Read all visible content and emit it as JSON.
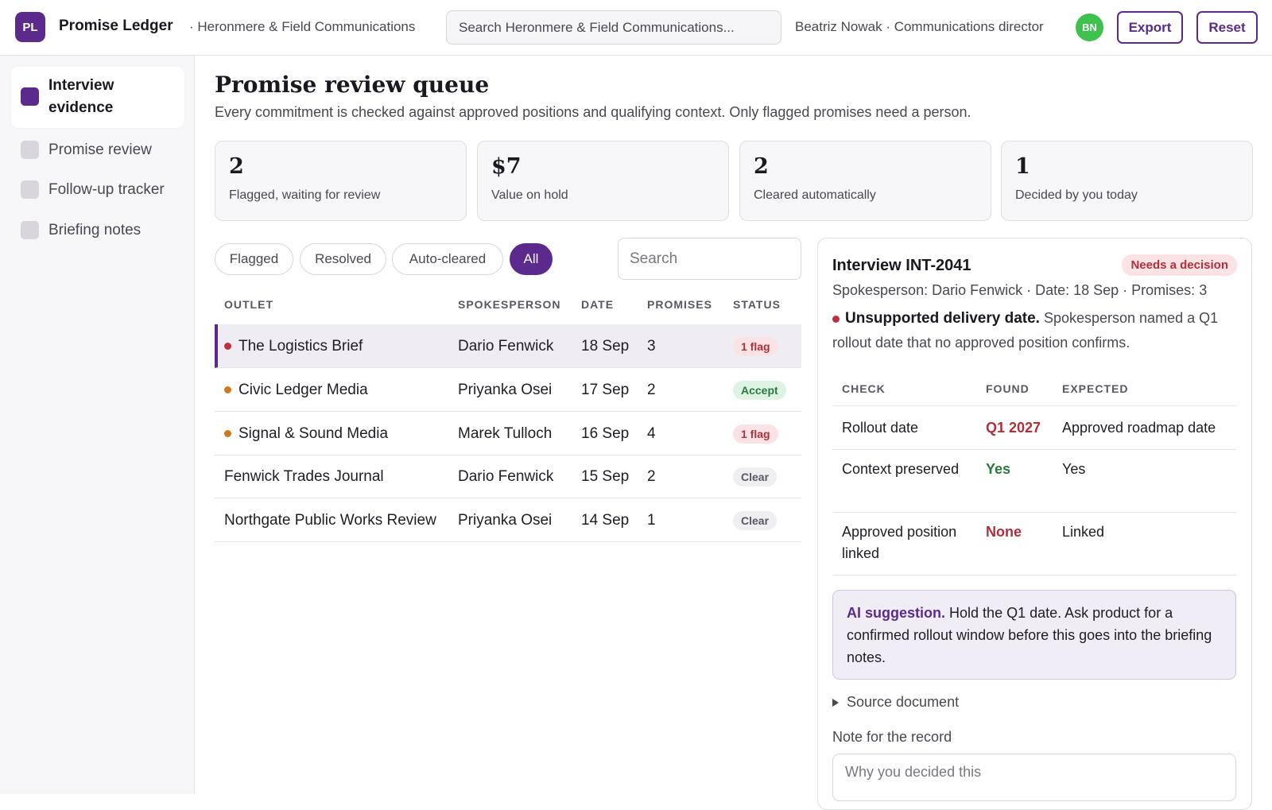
{
  "header": {
    "logo_text": "PL",
    "app_title": "Promise Ledger",
    "org_name": "· Heronmere & Field Communications",
    "search_placeholder": "Search Heronmere & Field Communications...",
    "user_label": "Beatriz Nowak · Communications director",
    "user_initials": "BN",
    "export_label": "Export",
    "reset_label": "Reset"
  },
  "sidebar": {
    "items": [
      {
        "label": "Interview evidence",
        "active": true
      },
      {
        "label": "Promise review",
        "active": false
      },
      {
        "label": "Follow-up tracker",
        "active": false
      },
      {
        "label": "Briefing notes",
        "active": false
      }
    ]
  },
  "main": {
    "title": "Promise review queue",
    "subtitle": "Every commitment is checked against approved positions and qualifying context. Only flagged promises need a person.",
    "stats": [
      {
        "value": "2",
        "caption": "Flagged, waiting for review"
      },
      {
        "value": "$7",
        "caption": "Value on hold"
      },
      {
        "value": "2",
        "caption": "Cleared automatically"
      },
      {
        "value": "1",
        "caption": "Decided by you today"
      }
    ],
    "filters": [
      "Flagged",
      "Resolved",
      "Auto-cleared",
      "All"
    ],
    "active_filter": "All",
    "table_search_placeholder": "Search",
    "columns": [
      "OUTLET",
      "SPOKESPERSON",
      "DATE",
      "PROMISES",
      "STATUS"
    ],
    "rows": [
      {
        "outlet": "The Logistics Brief",
        "spokesperson": "Dario Fenwick",
        "date": "18 Sep",
        "promises": "3",
        "status": "1 flag",
        "status_kind": "flag",
        "dot": "#c0303c"
      },
      {
        "outlet": "Civic Ledger Media",
        "spokesperson": "Priyanka Osei",
        "date": "17 Sep",
        "promises": "2",
        "status": "Accept",
        "status_kind": "accept",
        "dot": "#d07a1f"
      },
      {
        "outlet": "Signal & Sound Media",
        "spokesperson": "Marek Tulloch",
        "date": "16 Sep",
        "promises": "4",
        "status": "1 flag",
        "status_kind": "flag",
        "dot": "#d07a1f"
      },
      {
        "outlet": "Fenwick Trades Journal",
        "spokesperson": "Dario Fenwick",
        "date": "15 Sep",
        "promises": "2",
        "status": "Clear",
        "status_kind": "clear",
        "dot": null
      },
      {
        "outlet": "Northgate Public Works Review",
        "spokesperson": "Priyanka Osei",
        "date": "14 Sep",
        "promises": "1",
        "status": "Clear",
        "status_kind": "clear",
        "dot": null
      }
    ]
  },
  "detail": {
    "title": "Interview INT-2041",
    "badge": "Needs a decision",
    "meta": "Spokesperson: Dario Fenwick · Date: 18 Sep · Promises: 3",
    "issue_title": "Unsupported delivery date.",
    "issue_text": "Spokesperson named a Q1 rollout date that no approved position confirms.",
    "check_columns": [
      "CHECK",
      "FOUND",
      "EXPECTED"
    ],
    "checks": [
      {
        "check": "Rollout date",
        "found": "Q1 2027",
        "expected": "Approved roadmap date"
      },
      {
        "check": "Context preserved",
        "found": "Yes",
        "expected": "Yes"
      },
      {
        "check": "Approved position linked",
        "found": "None",
        "expected": "Linked"
      }
    ],
    "ai_label": "AI suggestion.",
    "ai_text": "Hold the Q1 date. Ask product for a confirmed rollout window before this goes into the briefing notes.",
    "source_label": "Source document",
    "note_label": "Note for the record",
    "note_placeholder": "Why you decided this"
  },
  "colors": {
    "accent": "#5b2a8c",
    "danger": "#b0303a",
    "success": "#2a7a3f",
    "warning": "#d07a1f",
    "avatar": "#3ec24e"
  }
}
